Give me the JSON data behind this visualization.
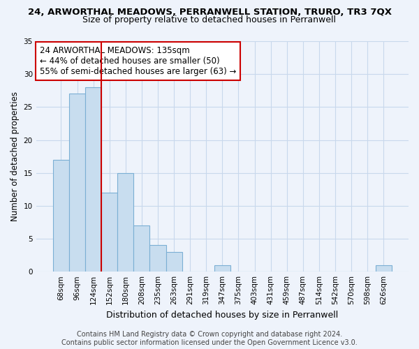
{
  "title": "24, ARWORTHAL MEADOWS, PERRANWELL STATION, TRURO, TR3 7QX",
  "subtitle": "Size of property relative to detached houses in Perranwell",
  "xlabel": "Distribution of detached houses by size in Perranwell",
  "ylabel": "Number of detached properties",
  "bar_color": "#c8ddef",
  "bar_edge_color": "#7bafd4",
  "vline_color": "#cc0000",
  "vline_x_index": 2,
  "annotation_text": "24 ARWORTHAL MEADOWS: 135sqm\n← 44% of detached houses are smaller (50)\n55% of semi-detached houses are larger (63) →",
  "annotation_box_color": "#ffffff",
  "annotation_box_edge": "#cc0000",
  "categories": [
    "68sqm",
    "96sqm",
    "124sqm",
    "152sqm",
    "180sqm",
    "208sqm",
    "235sqm",
    "263sqm",
    "291sqm",
    "319sqm",
    "347sqm",
    "375sqm",
    "403sqm",
    "431sqm",
    "459sqm",
    "487sqm",
    "514sqm",
    "542sqm",
    "570sqm",
    "598sqm",
    "626sqm"
  ],
  "values": [
    17,
    27,
    28,
    12,
    15,
    7,
    4,
    3,
    0,
    0,
    1,
    0,
    0,
    0,
    0,
    0,
    0,
    0,
    0,
    0,
    1
  ],
  "ylim": [
    0,
    35
  ],
  "yticks": [
    0,
    5,
    10,
    15,
    20,
    25,
    30,
    35
  ],
  "grid_color": "#c8d8ec",
  "background_color": "#eef3fb",
  "footer_text": "Contains HM Land Registry data © Crown copyright and database right 2024.\nContains public sector information licensed under the Open Government Licence v3.0.",
  "title_fontsize": 9.5,
  "subtitle_fontsize": 9,
  "xlabel_fontsize": 9,
  "ylabel_fontsize": 8.5,
  "tick_fontsize": 7.5,
  "annotation_fontsize": 8.5,
  "footer_fontsize": 7
}
